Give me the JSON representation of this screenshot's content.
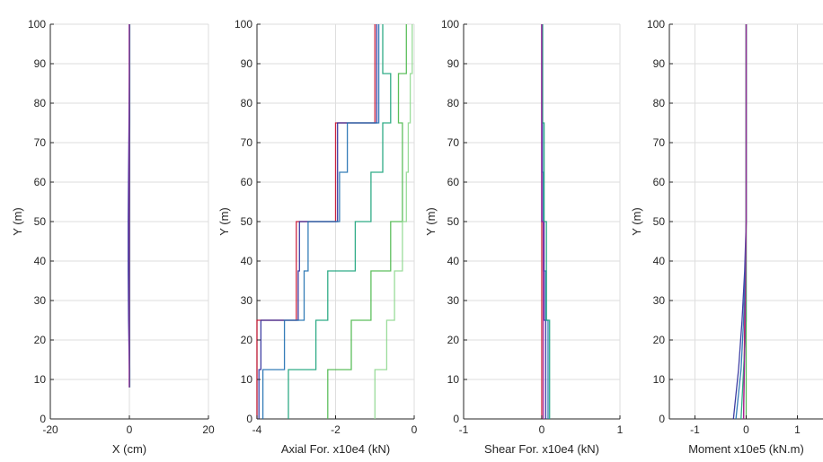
{
  "figure": {
    "colors": {
      "background": "#ffffff",
      "axis": "#262626",
      "grid": "#dedede",
      "series": [
        "#c8102e",
        "#2a2a9a",
        "#1f6fb0",
        "#1aa37a",
        "#4bb84b",
        "#8fd88f",
        "#a020a0"
      ]
    }
  },
  "chart_data": [
    {
      "type": "line",
      "xlabel": "X (cm)",
      "ylabel": "Y (m)",
      "xlim": [
        -20,
        20
      ],
      "ylim": [
        0,
        100
      ],
      "xticks": [
        "-20",
        "0",
        "20"
      ],
      "yticks": [
        "0",
        "10",
        "20",
        "30",
        "40",
        "50",
        "60",
        "70",
        "80",
        "90",
        "100"
      ],
      "grid": true,
      "series": [
        {
          "color": "#c8102e",
          "points": [
            [
              0,
              100
            ],
            [
              0,
              12.5
            ],
            [
              0,
              8
            ]
          ]
        },
        {
          "color": "#2a2a9a",
          "points": [
            [
              0,
              100
            ],
            [
              0,
              87.5
            ],
            [
              -0.1,
              75
            ],
            [
              -0.2,
              62.5
            ],
            [
              -0.3,
              50
            ],
            [
              -0.3,
              37.5
            ],
            [
              -0.2,
              25
            ],
            [
              0,
              12.5
            ],
            [
              0,
              8
            ]
          ]
        },
        {
          "color": "#1f6fb0",
          "points": [
            [
              0.1,
              100
            ],
            [
              0.1,
              75
            ],
            [
              0,
              50
            ],
            [
              -0.1,
              37.5
            ],
            [
              0,
              25
            ],
            [
              0.1,
              12.5
            ],
            [
              0.1,
              8
            ]
          ]
        },
        {
          "color": "#1aa37a",
          "points": [
            [
              0.1,
              100
            ],
            [
              0.1,
              62.5
            ],
            [
              0.1,
              37.5
            ],
            [
              0.1,
              25
            ],
            [
              0.1,
              12.5
            ],
            [
              0.1,
              8
            ]
          ]
        },
        {
          "color": "#a020a0",
          "points": [
            [
              0,
              100
            ],
            [
              0,
              62.5
            ],
            [
              0,
              37.5
            ],
            [
              0,
              12.5
            ],
            [
              0,
              8
            ]
          ]
        }
      ]
    },
    {
      "type": "line",
      "xlabel": "Axial For. x10e4 (kN)",
      "ylabel": "Y (m)",
      "xlim": [
        -4,
        0
      ],
      "ylim": [
        0,
        100
      ],
      "xticks": [
        "-4",
        "-2",
        "0"
      ],
      "yticks": [
        "0",
        "10",
        "20",
        "30",
        "40",
        "50",
        "60",
        "70",
        "80",
        "90",
        "100"
      ],
      "grid": true,
      "series": [
        {
          "color": "#c8102e",
          "points": [
            [
              -4,
              0
            ],
            [
              -4,
              25
            ],
            [
              -3,
              25
            ],
            [
              -3,
              50
            ],
            [
              -2,
              50
            ],
            [
              -2,
              75
            ],
            [
              -1,
              75
            ],
            [
              -1,
              100
            ]
          ]
        },
        {
          "color": "#2a2a9a",
          "points": [
            [
              -3.95,
              0
            ],
            [
              -3.95,
              12.5
            ],
            [
              -3.9,
              12.5
            ],
            [
              -3.9,
              25
            ],
            [
              -2.95,
              25
            ],
            [
              -2.95,
              37.5
            ],
            [
              -2.92,
              37.5
            ],
            [
              -2.92,
              50
            ],
            [
              -1.95,
              50
            ],
            [
              -1.95,
              62.5
            ],
            [
              -1.95,
              62.5
            ],
            [
              -1.95,
              75
            ],
            [
              -0.95,
              75
            ],
            [
              -0.95,
              87.5
            ],
            [
              -0.95,
              87.5
            ],
            [
              -0.95,
              100
            ]
          ]
        },
        {
          "color": "#1f6fb0",
          "points": [
            [
              -3.85,
              0
            ],
            [
              -3.85,
              12.5
            ],
            [
              -3.3,
              12.5
            ],
            [
              -3.3,
              25
            ],
            [
              -2.8,
              25
            ],
            [
              -2.8,
              37.5
            ],
            [
              -2.7,
              37.5
            ],
            [
              -2.7,
              50
            ],
            [
              -1.9,
              50
            ],
            [
              -1.9,
              62.5
            ],
            [
              -1.7,
              62.5
            ],
            [
              -1.7,
              75
            ],
            [
              -0.9,
              75
            ],
            [
              -0.9,
              87.5
            ],
            [
              -0.9,
              87.5
            ],
            [
              -0.9,
              100
            ]
          ]
        },
        {
          "color": "#1aa37a",
          "points": [
            [
              -3.2,
              0
            ],
            [
              -3.2,
              12.5
            ],
            [
              -2.5,
              12.5
            ],
            [
              -2.5,
              25
            ],
            [
              -2.2,
              25
            ],
            [
              -2.2,
              37.5
            ],
            [
              -1.5,
              37.5
            ],
            [
              -1.5,
              50
            ],
            [
              -1.1,
              50
            ],
            [
              -1.1,
              62.5
            ],
            [
              -0.8,
              62.5
            ],
            [
              -0.8,
              75
            ],
            [
              -0.6,
              75
            ],
            [
              -0.6,
              87.5
            ],
            [
              -0.8,
              87.5
            ],
            [
              -0.8,
              100
            ]
          ]
        },
        {
          "color": "#4bb84b",
          "points": [
            [
              -2.2,
              0
            ],
            [
              -2.2,
              12.5
            ],
            [
              -1.6,
              12.5
            ],
            [
              -1.6,
              25
            ],
            [
              -1.1,
              25
            ],
            [
              -1.1,
              37.5
            ],
            [
              -0.6,
              37.5
            ],
            [
              -0.6,
              50
            ],
            [
              -0.3,
              50
            ],
            [
              -0.3,
              62.5
            ],
            [
              -0.3,
              62.5
            ],
            [
              -0.3,
              75
            ],
            [
              -0.4,
              75
            ],
            [
              -0.4,
              87.5
            ],
            [
              -0.2,
              87.5
            ],
            [
              -0.2,
              100
            ]
          ]
        },
        {
          "color": "#8fd88f",
          "points": [
            [
              -1.0,
              0
            ],
            [
              -1.0,
              12.5
            ],
            [
              -0.7,
              12.5
            ],
            [
              -0.7,
              25
            ],
            [
              -0.5,
              25
            ],
            [
              -0.5,
              37.5
            ],
            [
              -0.3,
              37.5
            ],
            [
              -0.3,
              50
            ],
            [
              -0.2,
              50
            ],
            [
              -0.2,
              62.5
            ],
            [
              -0.15,
              62.5
            ],
            [
              -0.15,
              75
            ],
            [
              -0.1,
              75
            ],
            [
              -0.1,
              87.5
            ],
            [
              -0.05,
              87.5
            ],
            [
              -0.05,
              100
            ]
          ]
        }
      ]
    },
    {
      "type": "line",
      "xlabel": "Shear For. x10e4 (kN)",
      "ylabel": "Y (m)",
      "xlim": [
        -1,
        1
      ],
      "ylim": [
        0,
        100
      ],
      "xticks": [
        "-1",
        "0",
        "1"
      ],
      "yticks": [
        "0",
        "10",
        "20",
        "30",
        "40",
        "50",
        "60",
        "70",
        "80",
        "90",
        "100"
      ],
      "grid": true,
      "series": [
        {
          "color": "#c8102e",
          "points": [
            [
              0,
              0
            ],
            [
              0,
              100
            ]
          ]
        },
        {
          "color": "#2a2a9a",
          "points": [
            [
              0.05,
              0
            ],
            [
              0.05,
              25
            ],
            [
              0.03,
              25
            ],
            [
              0.03,
              50
            ],
            [
              0,
              50
            ],
            [
              0,
              75
            ],
            [
              0,
              75
            ],
            [
              0,
              100
            ]
          ]
        },
        {
          "color": "#1f6fb0",
          "points": [
            [
              0.08,
              0
            ],
            [
              0.08,
              25
            ],
            [
              0.05,
              25
            ],
            [
              0.05,
              37.5
            ],
            [
              0.02,
              37.5
            ],
            [
              0.02,
              62.5
            ],
            [
              0.01,
              62.5
            ],
            [
              0.01,
              100
            ]
          ]
        },
        {
          "color": "#1aa37a",
          "points": [
            [
              0.1,
              0
            ],
            [
              0.1,
              25
            ],
            [
              0.06,
              25
            ],
            [
              0.06,
              50
            ],
            [
              0.03,
              50
            ],
            [
              0.03,
              75
            ],
            [
              0.01,
              75
            ],
            [
              0.01,
              100
            ]
          ]
        },
        {
          "color": "#a020a0",
          "points": [
            [
              0.02,
              0
            ],
            [
              0.02,
              50
            ],
            [
              0,
              50
            ],
            [
              0,
              100
            ]
          ]
        }
      ]
    },
    {
      "type": "line",
      "xlabel": "Moment x10e5 (kN.m)",
      "ylabel": "Y (m)",
      "xlim": [
        -1.5,
        1.5
      ],
      "ylim": [
        0,
        100
      ],
      "xticks": [
        "-1",
        "0",
        "1"
      ],
      "yticks": [
        "0",
        "10",
        "20",
        "30",
        "40",
        "50",
        "60",
        "70",
        "80",
        "90",
        "100"
      ],
      "grid": true,
      "series": [
        {
          "color": "#c8102e",
          "points": [
            [
              -0.05,
              0
            ],
            [
              -0.03,
              25
            ],
            [
              0,
              50
            ],
            [
              0,
              75
            ],
            [
              0,
              100
            ]
          ]
        },
        {
          "color": "#2a2a9a",
          "points": [
            [
              -0.25,
              0
            ],
            [
              -0.15,
              12.5
            ],
            [
              -0.08,
              25
            ],
            [
              -0.03,
              37.5
            ],
            [
              0,
              50
            ],
            [
              0,
              75
            ],
            [
              0,
              100
            ]
          ]
        },
        {
          "color": "#1f6fb0",
          "points": [
            [
              -0.2,
              0
            ],
            [
              -0.1,
              12.5
            ],
            [
              -0.05,
              25
            ],
            [
              -0.02,
              37.5
            ],
            [
              0,
              50
            ],
            [
              0,
              100
            ]
          ]
        },
        {
          "color": "#1aa37a",
          "points": [
            [
              -0.1,
              0
            ],
            [
              -0.05,
              12.5
            ],
            [
              0,
              25
            ],
            [
              0,
              50
            ],
            [
              0,
              100
            ]
          ]
        },
        {
          "color": "#4bb84b",
          "points": [
            [
              0,
              0
            ],
            [
              0,
              12.5
            ],
            [
              0,
              25
            ],
            [
              0,
              100
            ]
          ]
        },
        {
          "color": "#a020a0",
          "points": [
            [
              -0.05,
              0
            ],
            [
              -0.02,
              25
            ],
            [
              0,
              50
            ],
            [
              0,
              100
            ]
          ]
        }
      ]
    }
  ]
}
